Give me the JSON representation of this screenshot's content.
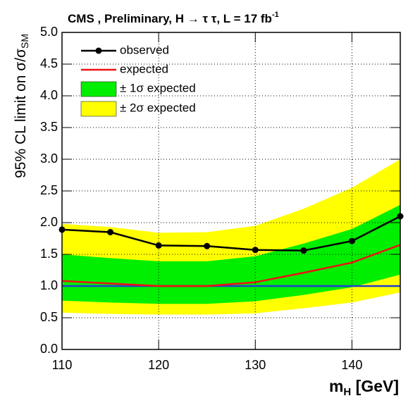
{
  "chart_data": {
    "type": "line",
    "title": "CMS , Preliminary, H → τ τ, L = 17 fb",
    "title_superscript": "-1",
    "xlabel": {
      "text": "m",
      "sub": "H",
      "rest": " [GeV]"
    },
    "ylabel": {
      "text": "95% CL limit on  σ/σ",
      "sub": "SM"
    },
    "x": [
      110,
      115,
      120,
      125,
      130,
      135,
      140,
      145
    ],
    "xlim": [
      110,
      145
    ],
    "xticks": [
      110,
      120,
      130,
      140
    ],
    "ylim": [
      0,
      5
    ],
    "yticks": [
      {
        "value": 0,
        "label": "0.0"
      },
      {
        "value": 0.5,
        "label": "0.5"
      },
      {
        "value": 1,
        "label": "1.0"
      },
      {
        "value": 1.5,
        "label": "1.5"
      },
      {
        "value": 2,
        "label": "2.0"
      },
      {
        "value": 2.5,
        "label": "2.5"
      },
      {
        "value": 3,
        "label": "3.0"
      },
      {
        "value": 3.5,
        "label": "3.5"
      },
      {
        "value": 4,
        "label": "4.0"
      },
      {
        "value": 4.5,
        "label": "4.5"
      },
      {
        "value": 5,
        "label": "5.0"
      }
    ],
    "grid": true,
    "legend": "top-left",
    "reference_line": {
      "value": 1,
      "color": "#1f3fd0"
    },
    "bands": [
      {
        "name": "± 2σ expected",
        "color": "#ffff00",
        "lower": [
          0.58,
          0.56,
          0.55,
          0.55,
          0.57,
          0.65,
          0.74,
          0.9
        ],
        "upper": [
          1.98,
          1.93,
          1.84,
          1.85,
          1.95,
          2.22,
          2.55,
          3.0
        ]
      },
      {
        "name": "± 1σ expected",
        "color": "#00ee00",
        "lower": [
          0.77,
          0.74,
          0.72,
          0.72,
          0.76,
          0.86,
          0.98,
          1.18
        ],
        "upper": [
          1.5,
          1.44,
          1.39,
          1.39,
          1.47,
          1.67,
          1.9,
          2.28
        ]
      }
    ],
    "series": [
      {
        "name": "observed",
        "color": "#000000",
        "markers": true,
        "values": [
          1.89,
          1.85,
          1.64,
          1.63,
          1.57,
          1.56,
          1.71,
          2.1
        ]
      },
      {
        "name": "expected",
        "color": "#ee1111",
        "markers": false,
        "values": [
          1.08,
          1.04,
          1.0,
          1.0,
          1.06,
          1.21,
          1.37,
          1.65
        ]
      }
    ]
  }
}
